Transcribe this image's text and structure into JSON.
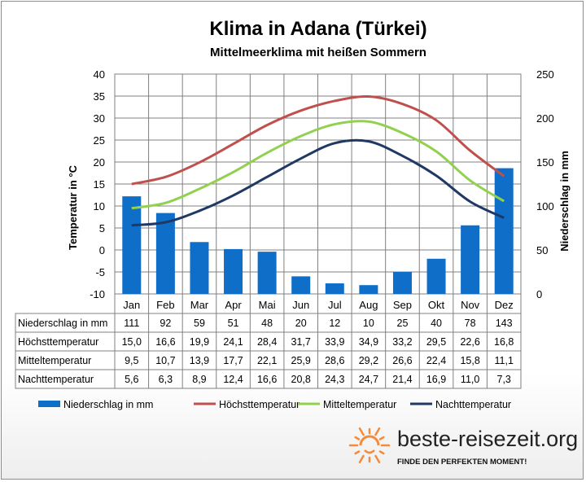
{
  "chart_data": {
    "type": "bar",
    "title": "Klima in Adana (Türkei)",
    "subtitle": "Mittelmeerklima mit heißen Sommern",
    "categories": [
      "Jan",
      "Feb",
      "Mar",
      "Apr",
      "Mai",
      "Jun",
      "Jul",
      "Aug",
      "Sep",
      "Okt",
      "Nov",
      "Dez"
    ],
    "series": [
      {
        "name": "Niederschlag in mm",
        "kind": "bar",
        "axis": "right",
        "color": "#0e6ec8",
        "values": [
          111,
          92,
          59,
          51,
          48,
          20,
          12,
          10,
          25,
          40,
          78,
          143
        ],
        "labels": [
          "111",
          "92",
          "59",
          "51",
          "48",
          "20",
          "12",
          "10",
          "25",
          "40",
          "78",
          "143"
        ]
      },
      {
        "name": "Höchsttemperatur",
        "kind": "line",
        "axis": "left",
        "color": "#c0504d",
        "values": [
          15.0,
          16.6,
          19.9,
          24.1,
          28.4,
          31.7,
          33.9,
          34.9,
          33.2,
          29.5,
          22.6,
          16.8
        ],
        "labels": [
          "15,0",
          "16,6",
          "19,9",
          "24,1",
          "28,4",
          "31,7",
          "33,9",
          "34,9",
          "33,2",
          "29,5",
          "22,6",
          "16,8"
        ]
      },
      {
        "name": "Mitteltemperatur",
        "kind": "line",
        "axis": "left",
        "color": "#92d050",
        "values": [
          9.5,
          10.7,
          13.9,
          17.7,
          22.1,
          25.9,
          28.6,
          29.2,
          26.6,
          22.4,
          15.8,
          11.1
        ],
        "labels": [
          "9,5",
          "10,7",
          "13,9",
          "17,7",
          "22,1",
          "25,9",
          "28,6",
          "29,2",
          "26,6",
          "22,4",
          "15,8",
          "11,1"
        ]
      },
      {
        "name": "Nachttemperatur",
        "kind": "line",
        "axis": "left",
        "color": "#1f3864",
        "values": [
          5.6,
          6.3,
          8.9,
          12.4,
          16.6,
          20.8,
          24.3,
          24.7,
          21.4,
          16.9,
          11.0,
          7.3
        ],
        "labels": [
          "5,6",
          "6,3",
          "8,9",
          "12,4",
          "16,6",
          "20,8",
          "24,3",
          "24,7",
          "21,4",
          "16,9",
          "11,0",
          "7,3"
        ]
      }
    ],
    "y_left": {
      "label": "Temperatur in °C",
      "min": -10,
      "max": 40,
      "step": 5,
      "ticks": [
        "40",
        "35",
        "30",
        "25",
        "20",
        "15",
        "10",
        "5",
        "0",
        "-5",
        "-10"
      ]
    },
    "y_right": {
      "label": "Niederschlag in mm",
      "min": 0,
      "max": 250,
      "step": 50,
      "ticks": [
        "250",
        "200",
        "150",
        "100",
        "50",
        "0"
      ]
    },
    "grid": true,
    "legend": "bottom",
    "table_rows": [
      "Niederschlag in mm",
      "Höchsttemperatur",
      "Mitteltemperatur",
      "Nachttemperatur"
    ]
  },
  "branding": {
    "site": "beste-reisezeit.org",
    "tagline": "FINDE DEN PERFEKTEN MOMENT!",
    "sun_color": "#f58a3a"
  }
}
